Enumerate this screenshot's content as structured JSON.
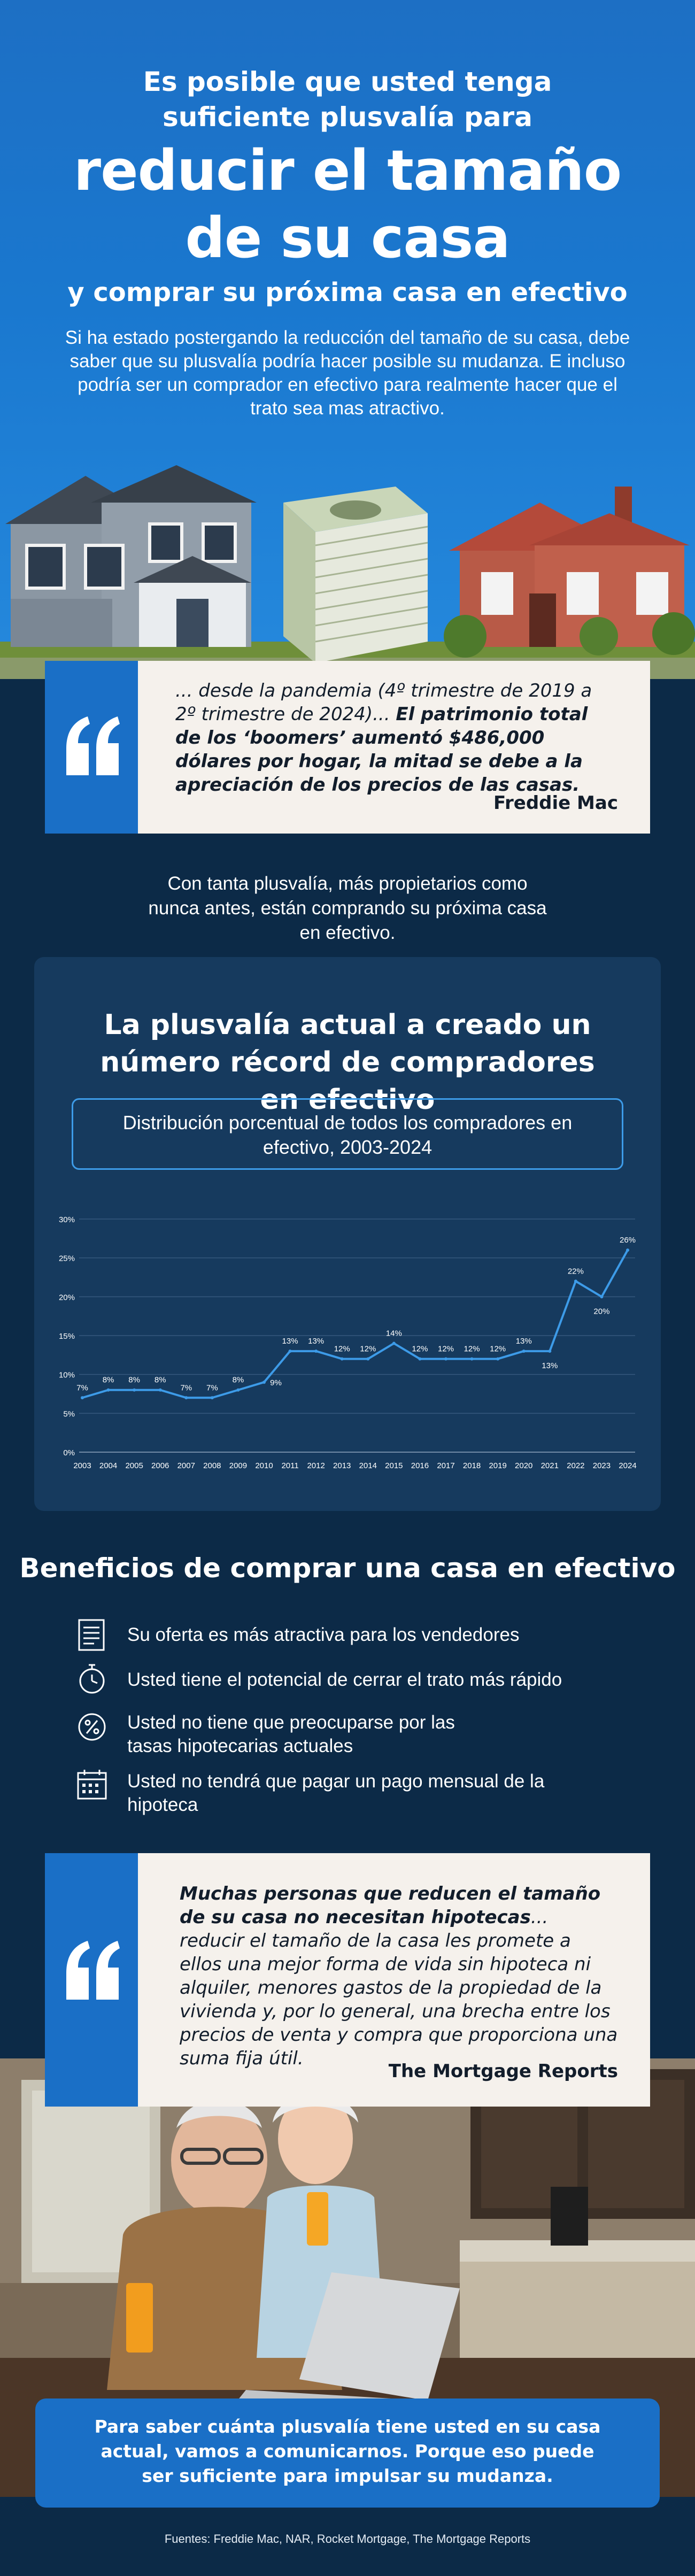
{
  "hero": {
    "pre_title": "Es posible que usted tenga",
    "pre_title_2": "suficiente plusvalía para",
    "big_title": "reducir el tamaño",
    "big_title_2": "de su casa",
    "post_title": "y comprar su próxima casa en efectivo",
    "lede": "Si ha estado postergando la reducción del tamaño de su casa, debe saber que su plusvalía podría hacer posible su mudanza. E incluso podría ser un comprador en efectivo para realmente hacer que el trato sea mas atractivo."
  },
  "quote1": {
    "text_plain": "... desde la pandemia (4º trimestre de 2019 a 2º trimestre de 2024)... ",
    "text_bold": "El patrimonio total de los ‘boomers’ aumentó $486,000 dólares por hogar, la mitad se debe a la apreciación de los precios de las casas.",
    "source": "Freddie Mac"
  },
  "lead_text": "Con tanta plusvalía, más propietarios como nunca antes, están comprando su próxima casa en efectivo.",
  "chart_section": {
    "title": "La plusvalía actual a creado un número récord de compradores en efectivo",
    "subtitle": "Distribución porcentual de todos los compradores en efectivo, 2003-2024"
  },
  "chart_data": {
    "type": "line",
    "title": "Distribución porcentual de todos los compradores en efectivo, 2003-2024",
    "x": [
      "2003",
      "2004",
      "2005",
      "2006",
      "2007",
      "2008",
      "2009",
      "2010",
      "2011",
      "2012",
      "2013",
      "2014",
      "2015",
      "2016",
      "2017",
      "2018",
      "2019",
      "2020",
      "2021",
      "2022",
      "2023",
      "2024"
    ],
    "series": [
      {
        "values": [
          7,
          8,
          8,
          8,
          7,
          7,
          8,
          9,
          13,
          13,
          12,
          12,
          14,
          12,
          12,
          12,
          12,
          13,
          13,
          22,
          20,
          26
        ]
      }
    ],
    "data_labels": [
      "7%",
      "8%",
      "8%",
      "8%",
      "7%",
      "7%",
      "8%",
      "9%",
      "13%",
      "13%",
      "12%",
      "12%",
      "14%",
      "12%",
      "12%",
      "12%",
      "12%",
      "13%",
      "13%",
      "22%",
      "20%",
      "26%"
    ],
    "y_ticks": [
      "0%",
      "5%",
      "10%",
      "15%",
      "20%",
      "25%",
      "30%"
    ],
    "ylim": [
      0,
      30
    ],
    "grid": true,
    "line_color": "#3d9be8"
  },
  "benefits": {
    "title": "Beneficios de comprar una casa en efectivo",
    "items": [
      {
        "icon": "document-icon",
        "text": "Su oferta es más atractiva para los vendedores"
      },
      {
        "icon": "stopwatch-icon",
        "text": "Usted tiene el potencial de cerrar el trato más rápido"
      },
      {
        "icon": "percent-icon",
        "text": "Usted no tiene que preocuparse por las tasas hipotecarias actuales"
      },
      {
        "icon": "calendar-icon",
        "text": "Usted no tendrá que pagar un pago mensual de la hipoteca"
      }
    ]
  },
  "quote2": {
    "text_bold": "Muchas personas que reducen el tamaño de su casa no necesitan hipotecas",
    "text_plain": "... reducir el tamaño de la casa les promete a ellos una mejor forma de vida sin hipoteca ni alquiler, menores gastos de la propiedad de la vivienda y, por lo general, una brecha entre los precios de venta y compra que proporciona una suma fija útil.",
    "source": "The Mortgage Reports"
  },
  "cta": {
    "text": "Para saber cuánta plusvalía tiene usted en su casa actual, vamos a comunicarnos. Porque eso puede ser suficiente para impulsar su mudanza."
  },
  "sources": "Fuentes: Freddie Mac, NAR, Rocket Mortgage, The Mortgage Reports",
  "colors": {
    "hero_blue": "#1a78cf",
    "navy": "#0c2a47",
    "card_navy": "#163a5e",
    "accent_blue": "#1a6fc6",
    "cream": "#f5f1ec"
  }
}
